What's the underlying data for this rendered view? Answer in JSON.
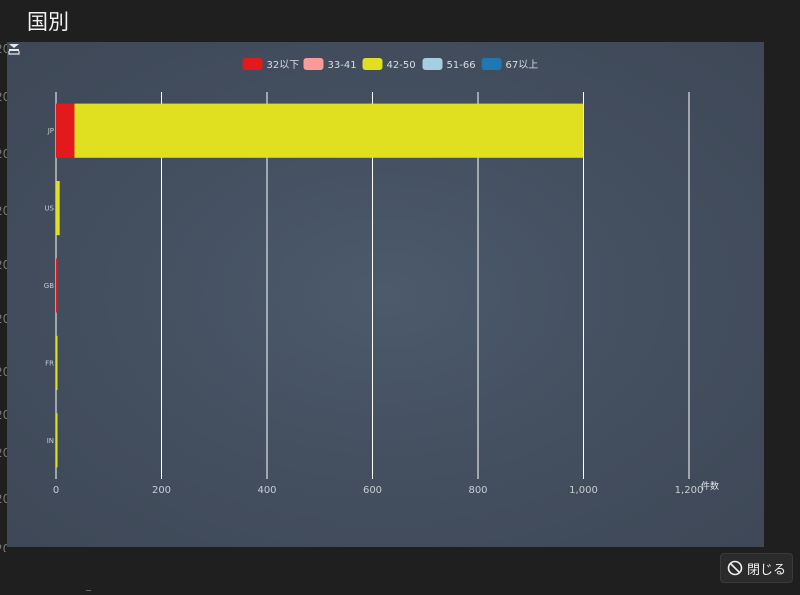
{
  "modal": {
    "title": "国別",
    "close_label": "閉じる"
  },
  "left_rail_fragments": [
    "20",
    "20",
    "20",
    "20",
    "20",
    "20",
    "20",
    "20",
    "20",
    "20",
    "20"
  ],
  "colors": {
    "page_bg": "#1f1f1f",
    "gridline": "#ffffff",
    "axis_text": "#c8ccd2"
  },
  "icons": {
    "save": "save-image-icon",
    "close": "ban-icon"
  },
  "chart_data": {
    "type": "bar",
    "orientation": "horizontal",
    "stacked": true,
    "categories": [
      "JP",
      "US",
      "GB",
      "FR",
      "IN"
    ],
    "series": [
      {
        "name": "32以下",
        "color": "#e31a1c",
        "values": [
          35,
          0,
          3,
          0,
          0
        ]
      },
      {
        "name": "33-41",
        "color": "#fb9a99",
        "values": [
          0,
          0,
          0,
          0,
          0
        ]
      },
      {
        "name": "42-50",
        "color": "#e0e020",
        "values": [
          965,
          7,
          0,
          2,
          2
        ]
      },
      {
        "name": "51-66",
        "color": "#a6cee3",
        "values": [
          0,
          0,
          0,
          0,
          0
        ]
      },
      {
        "name": "67以上",
        "color": "#1f78b4",
        "values": [
          0,
          0,
          0,
          0,
          0
        ]
      }
    ],
    "x_ticks": [
      "0",
      "200",
      "400",
      "600",
      "800",
      "1,000",
      "1,200"
    ],
    "xlim": [
      0,
      1200
    ],
    "x_unit": "件数",
    "legend_position": "top-center",
    "grid": true
  }
}
